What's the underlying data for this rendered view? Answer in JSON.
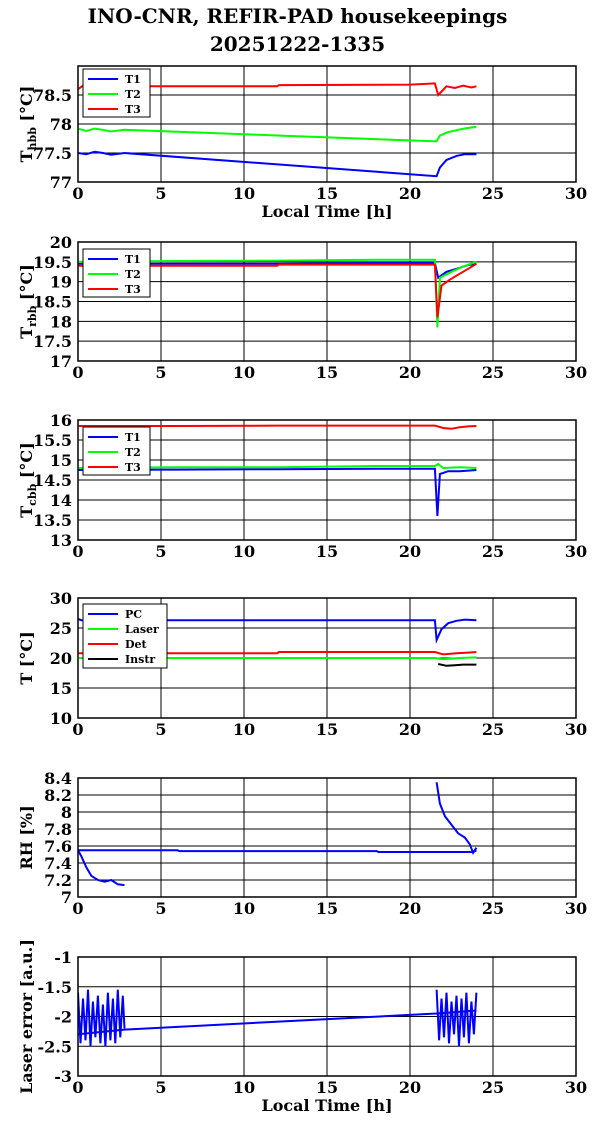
{
  "title_line1": "INO-CNR, REFIR-PAD housekeepings",
  "title_line2": "20251222-1335",
  "chart_data": [
    {
      "type": "line",
      "ylabel_main": "T",
      "ylabel_sub": "hbb",
      "ylabel_tail": " [°C]",
      "xlabel": "Local Time [h]",
      "xlim": [
        0,
        30
      ],
      "ylim": [
        77,
        79
      ],
      "xticks": [
        "0",
        "5",
        "10",
        "15",
        "20",
        "25",
        "30"
      ],
      "yticks": [
        {
          "v": 77,
          "t": "77"
        },
        {
          "v": 77.5,
          "t": "77.5"
        },
        {
          "v": 78,
          "t": "78"
        },
        {
          "v": 78.5,
          "t": "78.5"
        }
      ],
      "grid": true,
      "legend_position": "top-left",
      "series": [
        {
          "name": "T1",
          "color": "#0000ff",
          "x": [
            0,
            0.5,
            1,
            1.5,
            2,
            2.8,
            21.6,
            21.8,
            22.2,
            22.8,
            23.3,
            24
          ],
          "y": [
            77.5,
            77.48,
            77.52,
            77.5,
            77.47,
            77.5,
            77.1,
            77.25,
            77.38,
            77.45,
            77.48,
            77.48
          ]
        },
        {
          "name": "T2",
          "color": "#00ff00",
          "x": [
            0,
            0.5,
            1,
            1.5,
            2,
            2.8,
            21.6,
            21.8,
            22.3,
            22.9,
            23.4,
            24
          ],
          "y": [
            77.92,
            77.88,
            77.92,
            77.9,
            77.87,
            77.9,
            77.7,
            77.8,
            77.86,
            77.9,
            77.93,
            77.95
          ]
        },
        {
          "name": "T3",
          "color": "#ff0000",
          "x": [
            0,
            0.3,
            1,
            5,
            10,
            12,
            12.1,
            20,
            21.5,
            21.7,
            22.2,
            22.7,
            23.2,
            23.7,
            24
          ],
          "y": [
            78.6,
            78.66,
            78.65,
            78.65,
            78.65,
            78.65,
            78.67,
            78.68,
            78.7,
            78.5,
            78.65,
            78.62,
            78.66,
            78.63,
            78.65
          ]
        }
      ]
    },
    {
      "type": "line",
      "ylabel_main": "T",
      "ylabel_sub": "rbb",
      "ylabel_tail": " [°C]",
      "xlabel": "",
      "xlim": [
        0,
        30
      ],
      "ylim": [
        17,
        20
      ],
      "xticks": [
        "0",
        "5",
        "10",
        "15",
        "20",
        "25",
        "30"
      ],
      "yticks": [
        {
          "v": 17,
          "t": "17"
        },
        {
          "v": 17.5,
          "t": "17.5"
        },
        {
          "v": 18,
          "t": "18"
        },
        {
          "v": 18.5,
          "t": "18.5"
        },
        {
          "v": 19,
          "t": "19"
        },
        {
          "v": 19.5,
          "t": "19.5"
        },
        {
          "v": 20,
          "t": "20"
        }
      ],
      "grid": true,
      "legend_position": "top-left",
      "series": [
        {
          "name": "T1",
          "color": "#0000ff",
          "x": [
            0,
            6,
            12,
            18,
            21.5,
            21.7,
            22.2,
            23,
            23.5,
            24
          ],
          "y": [
            19.45,
            19.45,
            19.45,
            19.47,
            19.47,
            19.1,
            19.25,
            19.35,
            19.42,
            19.45
          ]
        },
        {
          "name": "T2",
          "color": "#00ff00",
          "x": [
            0,
            6,
            12,
            18,
            21.5,
            21.65,
            21.8,
            22.5,
            23.2,
            24
          ],
          "y": [
            19.5,
            19.52,
            19.53,
            19.55,
            19.55,
            17.85,
            19.1,
            19.25,
            19.38,
            19.5
          ]
        },
        {
          "name": "T3",
          "color": "#ff0000",
          "x": [
            0,
            6,
            12,
            12.1,
            18,
            21.5,
            21.65,
            21.9,
            22.4,
            23,
            23.6,
            24
          ],
          "y": [
            19.4,
            19.4,
            19.4,
            19.43,
            19.43,
            19.43,
            18.1,
            18.9,
            19.05,
            19.2,
            19.35,
            19.45
          ]
        }
      ]
    },
    {
      "type": "line",
      "ylabel_main": "T",
      "ylabel_sub": "cbb",
      "ylabel_tail": " [°C]",
      "xlabel": "",
      "xlim": [
        0,
        30
      ],
      "ylim": [
        13,
        16
      ],
      "xticks": [
        "0",
        "5",
        "10",
        "15",
        "20",
        "25",
        "30"
      ],
      "yticks": [
        {
          "v": 13,
          "t": "13"
        },
        {
          "v": 13.5,
          "t": "13.5"
        },
        {
          "v": 14,
          "t": "14"
        },
        {
          "v": 14.5,
          "t": "14.5"
        },
        {
          "v": 15,
          "t": "15"
        },
        {
          "v": 15.5,
          "t": "15.5"
        },
        {
          "v": 16,
          "t": "16"
        }
      ],
      "grid": true,
      "legend_position": "top-left",
      "series": [
        {
          "name": "T1",
          "color": "#0000ff",
          "x": [
            0,
            6,
            12,
            18,
            21.5,
            21.65,
            21.8,
            22.3,
            23,
            24
          ],
          "y": [
            14.75,
            14.76,
            14.77,
            14.78,
            14.78,
            13.6,
            14.65,
            14.72,
            14.72,
            14.75
          ]
        },
        {
          "name": "T2",
          "color": "#00ff00",
          "x": [
            0,
            6,
            12,
            18,
            21.5,
            21.7,
            22,
            23,
            24
          ],
          "y": [
            14.8,
            14.82,
            14.82,
            14.85,
            14.85,
            14.9,
            14.8,
            14.82,
            14.8
          ]
        },
        {
          "name": "T3",
          "color": "#ff0000",
          "x": [
            0,
            6,
            12,
            18,
            21.5,
            22,
            22.5,
            23,
            23.5,
            24
          ],
          "y": [
            15.85,
            15.85,
            15.86,
            15.86,
            15.86,
            15.8,
            15.78,
            15.82,
            15.84,
            15.85
          ]
        }
      ]
    },
    {
      "type": "line",
      "ylabel_main": "T [°C]",
      "ylabel_sub": "",
      "ylabel_tail": "",
      "xlabel": "",
      "xlim": [
        0,
        30
      ],
      "ylim": [
        10,
        30
      ],
      "xticks": [
        "0",
        "5",
        "10",
        "15",
        "20",
        "25",
        "30"
      ],
      "yticks": [
        {
          "v": 10,
          "t": "10"
        },
        {
          "v": 15,
          "t": "15"
        },
        {
          "v": 20,
          "t": "20"
        },
        {
          "v": 25,
          "t": "25"
        },
        {
          "v": 30,
          "t": "30"
        }
      ],
      "grid": true,
      "legend_position": "top-left",
      "series": [
        {
          "name": "PC",
          "color": "#0000ff",
          "x": [
            0,
            0.2,
            6,
            12,
            18,
            21.5,
            21.6,
            21.9,
            22.3,
            22.8,
            23.3,
            24
          ],
          "y": [
            26.5,
            26.3,
            26.3,
            26.3,
            26.3,
            26.3,
            23.0,
            24.8,
            25.8,
            26.2,
            26.4,
            26.3
          ]
        },
        {
          "name": "Laser",
          "color": "#00ff00",
          "x": [
            0,
            6,
            12,
            18,
            21.5,
            22,
            23,
            24
          ],
          "y": [
            20.0,
            20.0,
            20.0,
            20.0,
            20.0,
            19.8,
            20.0,
            20.1
          ]
        },
        {
          "name": "Det",
          "color": "#ff0000",
          "x": [
            0,
            6,
            12,
            12.1,
            18,
            21.5,
            22,
            22.8,
            23.5,
            24
          ],
          "y": [
            20.8,
            20.8,
            20.8,
            21.0,
            21.0,
            21.0,
            20.6,
            20.8,
            20.9,
            21.0
          ]
        },
        {
          "name": "Instr",
          "color": "#000000",
          "x": [
            21.7,
            22.2,
            22.7,
            23.2,
            23.7,
            24
          ],
          "y": [
            19.0,
            18.7,
            18.8,
            18.9,
            18.9,
            18.9
          ]
        }
      ]
    },
    {
      "type": "line",
      "ylabel_main": "RH [%]",
      "ylabel_sub": "",
      "ylabel_tail": "",
      "xlabel": "",
      "xlim": [
        0,
        30
      ],
      "ylim": [
        7,
        8.4
      ],
      "xticks": [
        "0",
        "5",
        "10",
        "15",
        "20",
        "25",
        "30"
      ],
      "yticks": [
        {
          "v": 7,
          "t": "7"
        },
        {
          "v": 7.2,
          "t": "7.2"
        },
        {
          "v": 7.4,
          "t": "7.4"
        },
        {
          "v": 7.6,
          "t": "7.6"
        },
        {
          "v": 7.8,
          "t": "7.8"
        },
        {
          "v": 8,
          "t": "8"
        },
        {
          "v": 8.2,
          "t": "8.2"
        },
        {
          "v": 8.4,
          "t": "8.4"
        }
      ],
      "grid": true,
      "legend_position": "none",
      "series": [
        {
          "name": "",
          "color": "#0000ff",
          "x": [
            0,
            0.2,
            0.5,
            0.8,
            1.2,
            1.6,
            2.0,
            2.4,
            2.8
          ],
          "y": [
            7.55,
            7.48,
            7.35,
            7.25,
            7.2,
            7.18,
            7.2,
            7.15,
            7.14
          ]
        },
        {
          "name": "",
          "color": "#0000ff",
          "x": [
            0,
            6,
            6.1,
            12,
            18,
            18.1,
            21.5,
            23.8,
            24
          ],
          "y": [
            7.55,
            7.55,
            7.54,
            7.54,
            7.54,
            7.53,
            7.53,
            7.53,
            7.55
          ]
        },
        {
          "name": "",
          "color": "#0000ff",
          "x": [
            21.6,
            21.8,
            22.1,
            22.5,
            22.9,
            23.3,
            23.6,
            23.8,
            24
          ],
          "y": [
            8.35,
            8.1,
            7.95,
            7.85,
            7.75,
            7.7,
            7.62,
            7.52,
            7.58
          ]
        }
      ]
    },
    {
      "type": "line",
      "ylabel_main": "Laser error [a.u.]",
      "ylabel_sub": "",
      "ylabel_tail": "",
      "xlabel": "Local Time [h]",
      "xlim": [
        0,
        30
      ],
      "ylim": [
        -3,
        -1
      ],
      "xticks": [
        "0",
        "5",
        "10",
        "15",
        "20",
        "25",
        "30"
      ],
      "yticks": [
        {
          "v": -3,
          "t": "-3"
        },
        {
          "v": -2.5,
          "t": "-2.5"
        },
        {
          "v": -2,
          "t": "-2"
        },
        {
          "v": -1.5,
          "t": "-1.5"
        },
        {
          "v": -1,
          "t": "-1"
        }
      ],
      "grid": true,
      "legend_position": "none",
      "series": [
        {
          "name": "",
          "color": "#0000ff",
          "x": [
            0,
            0.15,
            0.3,
            0.45,
            0.6,
            0.75,
            0.9,
            1.05,
            1.2,
            1.35,
            1.5,
            1.65,
            1.8,
            1.95,
            2.1,
            2.25,
            2.4,
            2.55,
            2.7,
            2.8
          ],
          "y": [
            -1.6,
            -2.45,
            -1.7,
            -2.4,
            -1.55,
            -2.5,
            -1.75,
            -2.35,
            -1.65,
            -2.45,
            -1.8,
            -2.5,
            -1.6,
            -2.4,
            -1.7,
            -2.45,
            -1.55,
            -2.35,
            -1.65,
            -2.2
          ]
        },
        {
          "name": "",
          "color": "#0000ff",
          "x": [
            0,
            2.8,
            21.6,
            24
          ],
          "y": [
            -2.3,
            -2.22,
            -1.95,
            -1.9
          ]
        },
        {
          "name": "",
          "color": "#0000ff",
          "x": [
            21.6,
            21.75,
            21.9,
            22.05,
            22.2,
            22.35,
            22.5,
            22.65,
            22.8,
            22.95,
            23.1,
            23.25,
            23.4,
            23.55,
            23.7,
            23.85,
            24
          ],
          "y": [
            -1.55,
            -2.4,
            -1.7,
            -2.35,
            -1.6,
            -2.45,
            -1.75,
            -2.3,
            -1.65,
            -2.5,
            -1.7,
            -2.35,
            -1.6,
            -2.45,
            -1.75,
            -2.3,
            -1.6
          ]
        }
      ]
    }
  ]
}
